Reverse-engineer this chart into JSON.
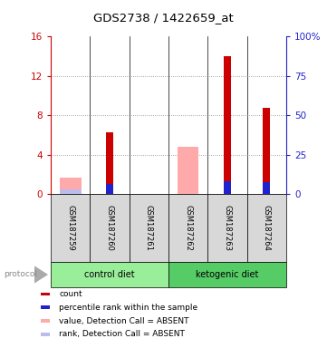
{
  "title": "GDS2738 / 1422659_at",
  "samples": [
    "GSM187259",
    "GSM187260",
    "GSM187261",
    "GSM187262",
    "GSM187263",
    "GSM187264"
  ],
  "groups": [
    {
      "name": "control diet",
      "indices": [
        0,
        1,
        2
      ],
      "color": "#99EE99"
    },
    {
      "name": "ketogenic diet",
      "indices": [
        3,
        4,
        5
      ],
      "color": "#55CC66"
    }
  ],
  "count_values": [
    0.0,
    6.3,
    0.0,
    0.0,
    14.0,
    8.8
  ],
  "percentile_values": [
    0.0,
    6.5,
    0.0,
    0.0,
    8.0,
    7.6
  ],
  "absent_value_values": [
    1.7,
    0.0,
    0.0,
    4.8,
    0.0,
    0.0
  ],
  "absent_rank_values": [
    2.8,
    0.0,
    0.28,
    0.0,
    0.0,
    0.0
  ],
  "left_ylim": [
    0,
    16
  ],
  "right_ylim": [
    0,
    100
  ],
  "left_yticks": [
    0,
    4,
    8,
    12,
    16
  ],
  "right_yticks": [
    0,
    25,
    50,
    75,
    100
  ],
  "left_yticklabels": [
    "0",
    "4",
    "8",
    "12",
    "16"
  ],
  "right_yticklabels": [
    "0",
    "25",
    "50",
    "75",
    "100%"
  ],
  "color_count": "#CC0000",
  "color_percentile": "#2222CC",
  "color_absent_value": "#FFAAAA",
  "color_absent_rank": "#BBBBEE",
  "legend_items": [
    {
      "color": "#CC0000",
      "label": "count"
    },
    {
      "color": "#2222CC",
      "label": "percentile rank within the sample"
    },
    {
      "color": "#FFAAAA",
      "label": "value, Detection Call = ABSENT"
    },
    {
      "color": "#BBBBEE",
      "label": "rank, Detection Call = ABSENT"
    }
  ],
  "left_axis_color": "#CC0000",
  "right_axis_color": "#2222CC",
  "sample_bg": "#D8D8D8",
  "group_bg_control": "#AADDAA",
  "group_bg_ketogenic": "#55CC66",
  "protocol_label": "protocol"
}
